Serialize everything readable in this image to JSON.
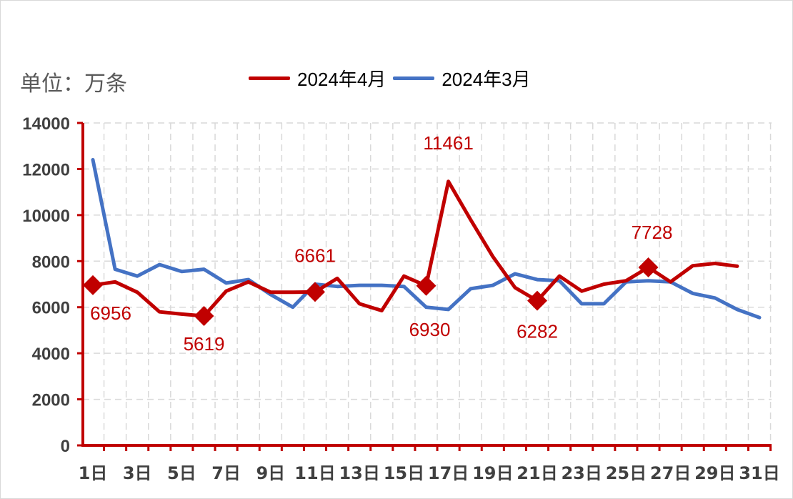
{
  "unit_label": "单位：万条",
  "chart_data": {
    "type": "line",
    "x": [
      "1日",
      "2日",
      "3日",
      "4日",
      "5日",
      "6日",
      "7日",
      "8日",
      "9日",
      "10日",
      "11日",
      "12日",
      "13日",
      "14日",
      "15日",
      "16日",
      "17日",
      "18日",
      "19日",
      "20日",
      "21日",
      "22日",
      "23日",
      "24日",
      "25日",
      "26日",
      "27日",
      "28日",
      "29日",
      "30日",
      "31日"
    ],
    "x_tick_labels": [
      "1日",
      "3日",
      "5日",
      "7日",
      "9日",
      "11日",
      "13日",
      "15日",
      "17日",
      "19日",
      "21日",
      "23日",
      "25日",
      "27日",
      "29日",
      "31日"
    ],
    "ylim": [
      0,
      14000
    ],
    "y_ticks": [
      "0",
      "2000",
      "4000",
      "6000",
      "8000",
      "10000",
      "12000",
      "14000"
    ],
    "grid": "dashed",
    "legend_placement": "top",
    "series": [
      {
        "name": "2024年4月",
        "color": "#c00000",
        "values": [
          6956,
          7100,
          6650,
          5800,
          5700,
          5619,
          6700,
          7100,
          6650,
          6650,
          6661,
          7250,
          6150,
          5850,
          7350,
          6930,
          11461,
          9800,
          8200,
          6850,
          6282,
          7350,
          6700,
          7000,
          7150,
          7728,
          7100,
          7800,
          7900,
          7780,
          null
        ],
        "markers": [
          {
            "index": 0,
            "label": "6956"
          },
          {
            "index": 5,
            "label": "5619"
          },
          {
            "index": 10,
            "label": "6661"
          },
          {
            "index": 15,
            "label": "6930"
          },
          {
            "index": 16,
            "label": "11461"
          },
          {
            "index": 20,
            "label": "6282"
          },
          {
            "index": 25,
            "label": "7728"
          }
        ]
      },
      {
        "name": "2024年3月",
        "color": "#4472c4",
        "values": [
          12400,
          7650,
          7350,
          7850,
          7550,
          7650,
          7050,
          7200,
          6550,
          6000,
          7000,
          6900,
          6950,
          6950,
          6900,
          6000,
          5900,
          6800,
          6950,
          7450,
          7200,
          7150,
          6150,
          6150,
          7100,
          7150,
          7100,
          6600,
          6400,
          5900,
          5550
        ]
      }
    ]
  }
}
